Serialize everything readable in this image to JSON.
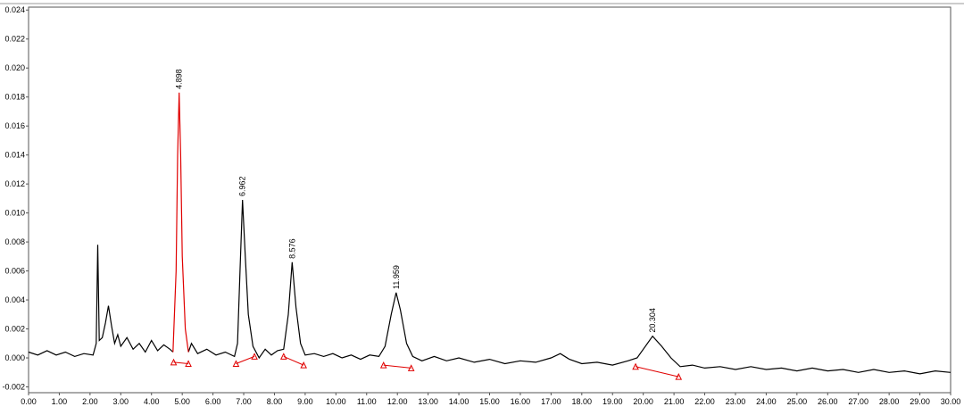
{
  "chart_data": {
    "type": "line",
    "xlim": [
      0,
      30
    ],
    "ylim": [
      -0.0024,
      0.0242
    ],
    "xticks": [
      {
        "value": 0,
        "label": "0.00"
      },
      {
        "value": 1,
        "label": "1.00"
      },
      {
        "value": 2,
        "label": "2.00"
      },
      {
        "value": 3,
        "label": "3.00"
      },
      {
        "value": 4,
        "label": "4.00"
      },
      {
        "value": 5,
        "label": "5.00"
      },
      {
        "value": 6,
        "label": "6.00"
      },
      {
        "value": 7,
        "label": "7.00"
      },
      {
        "value": 8,
        "label": "8.00"
      },
      {
        "value": 9,
        "label": "9.00"
      },
      {
        "value": 10,
        "label": "10.00"
      },
      {
        "value": 11,
        "label": "11.00"
      },
      {
        "value": 12,
        "label": "12.00"
      },
      {
        "value": 13,
        "label": "13.00"
      },
      {
        "value": 14,
        "label": "14.00"
      },
      {
        "value": 15,
        "label": "15.00"
      },
      {
        "value": 16,
        "label": "16.00"
      },
      {
        "value": 17,
        "label": "17.00"
      },
      {
        "value": 18,
        "label": "18.00"
      },
      {
        "value": 19,
        "label": "19.00"
      },
      {
        "value": 20,
        "label": "20.00"
      },
      {
        "value": 21,
        "label": "21.00"
      },
      {
        "value": 22,
        "label": "22.00"
      },
      {
        "value": 23,
        "label": "23.00"
      },
      {
        "value": 24,
        "label": "24.00"
      },
      {
        "value": 25,
        "label": "25.00"
      },
      {
        "value": 26,
        "label": "26.00"
      },
      {
        "value": 27,
        "label": "27.00"
      },
      {
        "value": 28,
        "label": "28.00"
      },
      {
        "value": 29,
        "label": "29.00"
      },
      {
        "value": 30,
        "label": "30.00"
      }
    ],
    "yticks": [
      0.024,
      0.022,
      {
        "value": 0.02,
        "label": "0.020"
      },
      0.018,
      0.016,
      0.014,
      0.012,
      {
        "value": 0.01,
        "label": "0.010"
      },
      0.008,
      0.006,
      0.004,
      0.002,
      {
        "value": 0,
        "label": "0.000"
      },
      -0.002
    ],
    "series": [
      {
        "color": "#000000",
        "x": [
          0,
          0.3,
          0.6,
          0.9,
          1.2,
          1.5,
          1.8,
          2.1,
          2.2,
          2.25,
          2.3,
          2.4,
          2.5,
          2.6,
          2.7,
          2.8,
          2.9,
          3.0,
          3.2,
          3.4,
          3.6,
          3.8,
          4.0,
          4.2,
          4.4,
          4.6,
          4.7,
          4.9,
          5.2,
          5.3,
          5.5,
          5.8,
          6.1,
          6.4,
          6.7,
          6.8,
          6.88,
          6.962,
          7.05,
          7.15,
          7.3,
          7.5,
          7.7,
          7.9,
          8.1,
          8.3,
          8.45,
          8.576,
          8.7,
          8.85,
          9.0,
          9.3,
          9.6,
          9.9,
          10.2,
          10.5,
          10.8,
          11.1,
          11.4,
          11.6,
          11.8,
          11.959,
          12.1,
          12.3,
          12.5,
          12.8,
          13.2,
          13.6,
          14.0,
          14.5,
          15.0,
          15.5,
          16.0,
          16.5,
          17.0,
          17.3,
          17.6,
          18.0,
          18.5,
          19.0,
          19.5,
          19.8,
          20.0,
          20.304,
          20.6,
          20.9,
          21.2,
          21.6,
          22.0,
          22.5,
          23.0,
          23.5,
          24.0,
          24.5,
          25.0,
          25.5,
          26.0,
          26.5,
          27.0,
          27.5,
          28.0,
          28.5,
          29.0,
          29.5,
          30.0
        ],
        "values": [
          0.0004,
          0.0002,
          0.0005,
          0.0002,
          0.0004,
          0.0001,
          0.0003,
          0.0002,
          0.001,
          0.0078,
          0.0012,
          0.0014,
          0.0024,
          0.0036,
          0.0022,
          0.001,
          0.0016,
          0.0008,
          0.0014,
          0.0006,
          0.001,
          0.0004,
          0.0012,
          0.0005,
          0.0009,
          0.0006,
          0.0004,
          null,
          0.0004,
          0.001,
          0.0003,
          0.0006,
          0.0002,
          0.0004,
          0.0001,
          0.001,
          0.006,
          0.0109,
          0.007,
          0.003,
          0.0008,
          0.0,
          0.0006,
          0.0002,
          0.0005,
          0.0006,
          0.003,
          0.0066,
          0.0035,
          0.001,
          0.0002,
          0.0003,
          0.0001,
          0.0003,
          0.0,
          0.0002,
          -0.0001,
          0.0002,
          0.0001,
          0.0008,
          0.003,
          0.0045,
          0.0033,
          0.001,
          0.0001,
          -0.0002,
          0.0001,
          -0.0002,
          0.0,
          -0.0003,
          -0.0001,
          -0.0004,
          -0.0002,
          -0.0003,
          0.0,
          0.0003,
          -0.0001,
          -0.0004,
          -0.0003,
          -0.0005,
          -0.0002,
          0.0,
          0.0006,
          0.0015,
          0.0008,
          0.0,
          -0.0006,
          -0.0005,
          -0.0007,
          -0.0006,
          -0.0008,
          -0.0006,
          -0.0008,
          -0.0007,
          -0.0009,
          -0.0007,
          -0.0009,
          -0.0008,
          -0.001,
          -0.0008,
          -0.001,
          -0.0009,
          -0.0011,
          -0.0009,
          -0.001
        ]
      },
      {
        "color": "#e00000",
        "x": [
          4.7,
          4.8,
          4.85,
          4.898,
          4.95,
          5.0,
          5.1,
          5.2
        ],
        "values": [
          0.0004,
          0.006,
          0.014,
          0.0183,
          0.014,
          0.007,
          0.002,
          0.0004
        ]
      }
    ],
    "peaks": [
      {
        "x": 4.898,
        "y": 0.0183
      },
      {
        "x": 6.962,
        "y": 0.0109
      },
      {
        "x": 8.576,
        "y": 0.0066
      },
      {
        "x": 11.959,
        "y": 0.0045
      },
      {
        "x": 20.304,
        "y": 0.0015
      }
    ],
    "baselines": [
      {
        "x": [
          4.72,
          5.2
        ],
        "y": [
          -0.0003,
          -0.0004
        ]
      },
      {
        "x": [
          6.75,
          7.35
        ],
        "y": [
          -0.0004,
          0.0001
        ]
      },
      {
        "x": [
          8.3,
          8.95
        ],
        "y": [
          0.0001,
          -0.0005
        ]
      },
      {
        "x": [
          11.55,
          12.45
        ],
        "y": [
          -0.0005,
          -0.0007
        ]
      },
      {
        "x": [
          19.75,
          21.15
        ],
        "y": [
          -0.0006,
          -0.0013
        ]
      }
    ]
  }
}
